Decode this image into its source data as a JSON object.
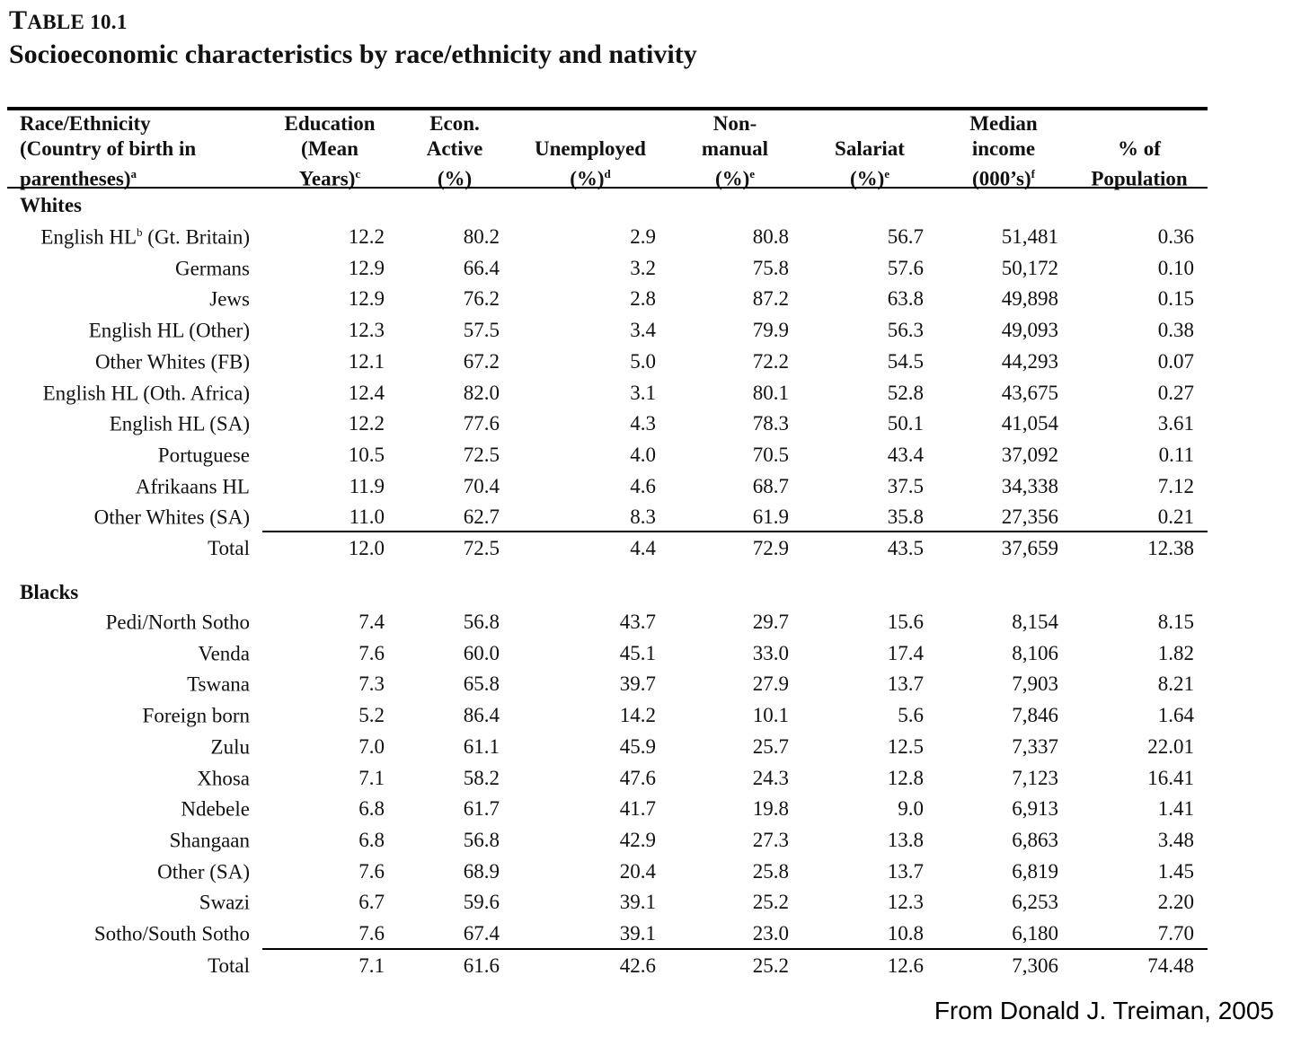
{
  "title": {
    "label_prefix": "T",
    "label_rest": "ABLE 10.1",
    "subtitle": "Socioeconomic characteristics by race/ethnicity and nativity"
  },
  "headers": {
    "col0": {
      "l1": "Race/Ethnicity",
      "l2": "(Country of birth in",
      "l3": "parentheses)",
      "sup": "a"
    },
    "col1": {
      "l1": "Education",
      "l2": "(Mean",
      "l3": "Years)",
      "sup": "c"
    },
    "col2": {
      "l1": "Econ.",
      "l2": "Active",
      "l3": "(%)",
      "sup": ""
    },
    "col3": {
      "l1": "",
      "l2": "Unemployed",
      "l3": "(%)",
      "sup": "d"
    },
    "col4": {
      "l1": "Non-",
      "l2": "manual",
      "l3": "(%)",
      "sup": "e"
    },
    "col5": {
      "l1": "",
      "l2": "Salariat",
      "l3": "(%)",
      "sup": "e"
    },
    "col6": {
      "l1": "Median",
      "l2": "income",
      "l3": "(000’s)",
      "sup": "f"
    },
    "col7": {
      "l1": "",
      "l2": "% of",
      "l3": "Population",
      "sup": ""
    }
  },
  "sections": [
    {
      "name": "Whites",
      "rows": [
        {
          "label": "English HL",
          "sup": "b",
          "label_suffix": " (Gt. Britain)",
          "values": [
            "12.2",
            "80.2",
            "2.9",
            "80.8",
            "56.7",
            "51,481",
            "0.36"
          ]
        },
        {
          "label": "Germans",
          "sup": "",
          "label_suffix": "",
          "values": [
            "12.9",
            "66.4",
            "3.2",
            "75.8",
            "57.6",
            "50,172",
            "0.10"
          ]
        },
        {
          "label": "Jews",
          "sup": "",
          "label_suffix": "",
          "values": [
            "12.9",
            "76.2",
            "2.8",
            "87.2",
            "63.8",
            "49,898",
            "0.15"
          ]
        },
        {
          "label": "English HL (Other)",
          "sup": "",
          "label_suffix": "",
          "values": [
            "12.3",
            "57.5",
            "3.4",
            "79.9",
            "56.3",
            "49,093",
            "0.38"
          ]
        },
        {
          "label": "Other Whites (FB)",
          "sup": "",
          "label_suffix": "",
          "values": [
            "12.1",
            "67.2",
            "5.0",
            "72.2",
            "54.5",
            "44,293",
            "0.07"
          ]
        },
        {
          "label": "English HL (Oth. Africa)",
          "sup": "",
          "label_suffix": "",
          "values": [
            "12.4",
            "82.0",
            "3.1",
            "80.1",
            "52.8",
            "43,675",
            "0.27"
          ]
        },
        {
          "label": "English HL (SA)",
          "sup": "",
          "label_suffix": "",
          "values": [
            "12.2",
            "77.6",
            "4.3",
            "78.3",
            "50.1",
            "41,054",
            "3.61"
          ]
        },
        {
          "label": "Portuguese",
          "sup": "",
          "label_suffix": "",
          "values": [
            "10.5",
            "72.5",
            "4.0",
            "70.5",
            "43.4",
            "37,092",
            "0.11"
          ]
        },
        {
          "label": "Afrikaans HL",
          "sup": "",
          "label_suffix": "",
          "values": [
            "11.9",
            "70.4",
            "4.6",
            "68.7",
            "37.5",
            "34,338",
            "7.12"
          ]
        },
        {
          "label": "Other Whites (SA)",
          "sup": "",
          "label_suffix": "",
          "values": [
            "11.0",
            "62.7",
            "8.3",
            "61.9",
            "35.8",
            "27,356",
            "0.21"
          ]
        }
      ],
      "total": {
        "label": "Total",
        "values": [
          "12.0",
          "72.5",
          "4.4",
          "72.9",
          "43.5",
          "37,659",
          "12.38"
        ]
      }
    },
    {
      "name": "Blacks",
      "rows": [
        {
          "label": "Pedi/North Sotho",
          "sup": "",
          "label_suffix": "",
          "values": [
            "7.4",
            "56.8",
            "43.7",
            "29.7",
            "15.6",
            "8,154",
            "8.15"
          ]
        },
        {
          "label": "Venda",
          "sup": "",
          "label_suffix": "",
          "values": [
            "7.6",
            "60.0",
            "45.1",
            "33.0",
            "17.4",
            "8,106",
            "1.82"
          ]
        },
        {
          "label": "Tswana",
          "sup": "",
          "label_suffix": "",
          "values": [
            "7.3",
            "65.8",
            "39.7",
            "27.9",
            "13.7",
            "7,903",
            "8.21"
          ]
        },
        {
          "label": "Foreign born",
          "sup": "",
          "label_suffix": "",
          "values": [
            "5.2",
            "86.4",
            "14.2",
            "10.1",
            "5.6",
            "7,846",
            "1.64"
          ]
        },
        {
          "label": "Zulu",
          "sup": "",
          "label_suffix": "",
          "values": [
            "7.0",
            "61.1",
            "45.9",
            "25.7",
            "12.5",
            "7,337",
            "22.01"
          ]
        },
        {
          "label": "Xhosa",
          "sup": "",
          "label_suffix": "",
          "values": [
            "7.1",
            "58.2",
            "47.6",
            "24.3",
            "12.8",
            "7,123",
            "16.41"
          ]
        },
        {
          "label": "Ndebele",
          "sup": "",
          "label_suffix": "",
          "values": [
            "6.8",
            "61.7",
            "41.7",
            "19.8",
            "9.0",
            "6,913",
            "1.41"
          ]
        },
        {
          "label": "Shangaan",
          "sup": "",
          "label_suffix": "",
          "values": [
            "6.8",
            "56.8",
            "42.9",
            "27.3",
            "13.8",
            "6,863",
            "3.48"
          ]
        },
        {
          "label": "Other (SA)",
          "sup": "",
          "label_suffix": "",
          "values": [
            "7.6",
            "68.9",
            "20.4",
            "25.8",
            "13.7",
            "6,819",
            "1.45"
          ]
        },
        {
          "label": "Swazi",
          "sup": "",
          "label_suffix": "",
          "values": [
            "6.7",
            "59.6",
            "39.1",
            "25.2",
            "12.3",
            "6,253",
            "2.20"
          ]
        },
        {
          "label": "Sotho/South Sotho",
          "sup": "",
          "label_suffix": "",
          "values": [
            "7.6",
            "67.4",
            "39.1",
            "23.0",
            "10.8",
            "6,180",
            "7.70"
          ]
        }
      ],
      "total": {
        "label": "Total",
        "values": [
          "7.1",
          "61.6",
          "42.6",
          "25.2",
          "12.6",
          "7,306",
          "74.48"
        ]
      }
    }
  ],
  "credit": "From Donald J. Treiman, 2005"
}
